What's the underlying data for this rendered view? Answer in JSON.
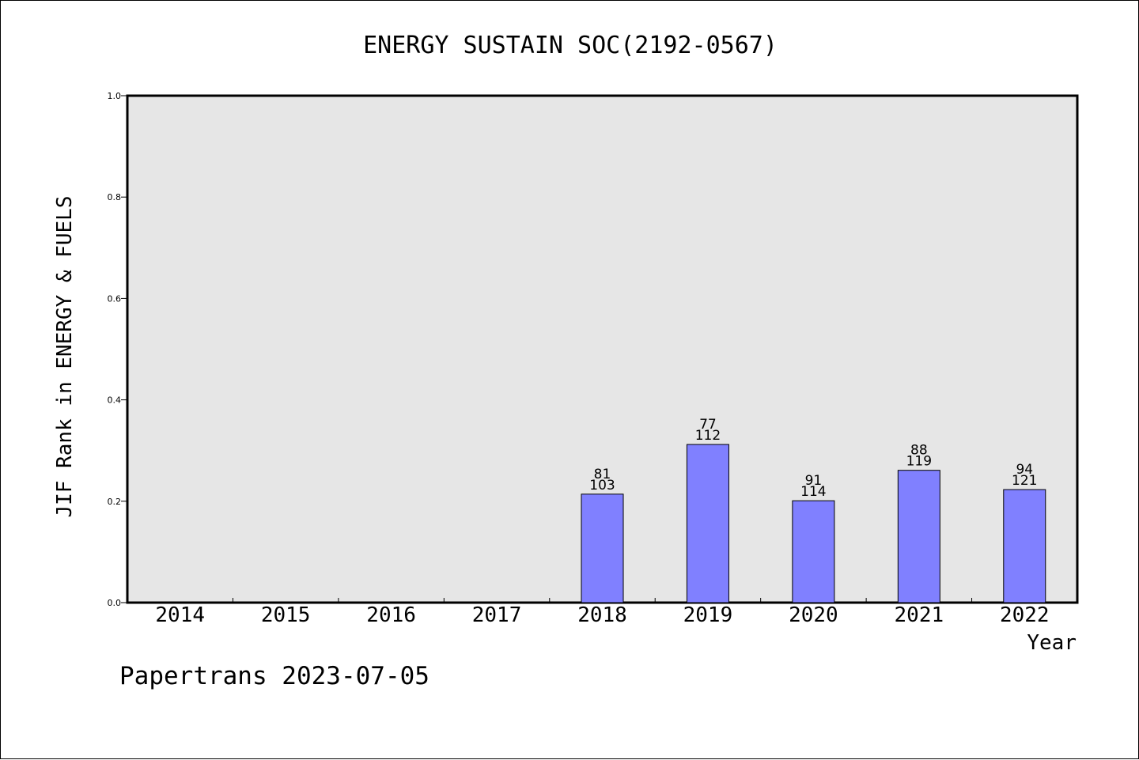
{
  "chart_data": {
    "type": "bar",
    "title": "ENERGY SUSTAIN SOC(2192-0567)",
    "xlabel": "Year",
    "ylabel": "JIF Rank in ENERGY & FUELS",
    "categories": [
      "2014",
      "2015",
      "2016",
      "2017",
      "2018",
      "2019",
      "2020",
      "2021",
      "2022"
    ],
    "values": [
      null,
      null,
      null,
      null,
      0.214,
      0.312,
      0.201,
      0.261,
      0.223
    ],
    "rank_labels": [
      "",
      "",
      "",
      "",
      "81",
      "77",
      "91",
      "88",
      "94"
    ],
    "total_labels": [
      "",
      "",
      "",
      "",
      "103",
      "112",
      "114",
      "119",
      "121"
    ],
    "ylim": [
      0,
      1.0
    ],
    "yticks": [
      "0.0",
      "0.2",
      "0.4",
      "0.6",
      "0.8",
      "1.0"
    ],
    "grid": false,
    "bar_color": "#8080ff",
    "plot_background": "#e6e6e6"
  },
  "footer": "Papertrans 2023-07-05"
}
